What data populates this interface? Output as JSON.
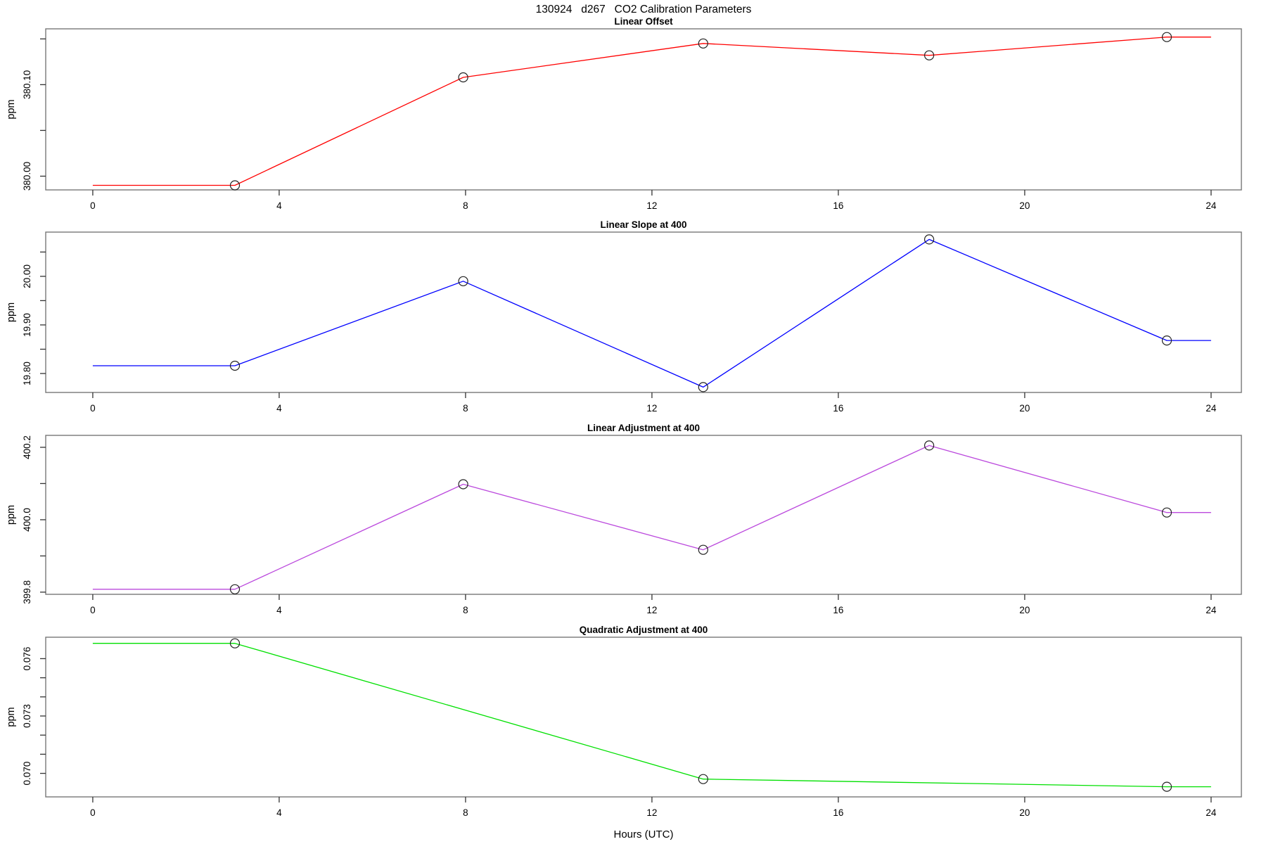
{
  "figure": {
    "title": "130924   d267   CO2 Calibration Parameters",
    "xlabel": "Hours (UTC)",
    "x_ticks": [
      0,
      4,
      8,
      12,
      16,
      20,
      24
    ],
    "axis_color": "#777777",
    "tick_color": "#333333",
    "marker_color": "#222222",
    "text_color": "#000000"
  },
  "chart_data": [
    {
      "type": "line",
      "title": "Linear Offset",
      "ylabel": "ppm",
      "color": "#ff0000",
      "x": [
        0,
        3.05,
        7.95,
        13.1,
        17.95,
        23.05,
        24
      ],
      "y": [
        379.99,
        379.99,
        380.108,
        380.145,
        380.132,
        380.152,
        380.152
      ],
      "marker_indices": [
        1,
        2,
        3,
        4,
        5
      ],
      "xlim": [
        -1.01,
        24.65
      ],
      "ylim": [
        379.985,
        380.161
      ],
      "yticks": [
        {
          "v": 380.0,
          "label": "380.00"
        },
        {
          "v": 380.05,
          "label": ""
        },
        {
          "v": 380.1,
          "label": "380.10"
        },
        {
          "v": 380.15,
          "label": ""
        }
      ]
    },
    {
      "type": "line",
      "title": "Linear Slope at 400",
      "ylabel": "ppm",
      "color": "#0000ff",
      "x": [
        0,
        3.05,
        7.95,
        13.1,
        17.95,
        23.05,
        24
      ],
      "y": [
        19.816,
        19.816,
        19.99,
        19.772,
        20.076,
        19.868,
        19.868
      ],
      "marker_indices": [
        1,
        2,
        3,
        4,
        5
      ],
      "xlim": [
        -1.01,
        24.65
      ],
      "ylim": [
        19.761,
        20.091
      ],
      "yticks": [
        {
          "v": 19.8,
          "label": "19.80"
        },
        {
          "v": 19.85,
          "label": ""
        },
        {
          "v": 19.9,
          "label": "19.90"
        },
        {
          "v": 19.95,
          "label": ""
        },
        {
          "v": 20.0,
          "label": "20.00"
        },
        {
          "v": 20.05,
          "label": ""
        }
      ]
    },
    {
      "type": "line",
      "title": "Linear Adjustment at 400",
      "ylabel": "ppm",
      "color": "#bb49dd",
      "x": [
        0,
        3.05,
        7.95,
        13.1,
        17.95,
        23.05,
        24
      ],
      "y": [
        399.808,
        399.808,
        400.098,
        399.917,
        400.205,
        400.02,
        400.02
      ],
      "marker_indices": [
        1,
        2,
        3,
        4,
        5
      ],
      "xlim": [
        -1.01,
        24.65
      ],
      "ylim": [
        399.794,
        400.233
      ],
      "yticks": [
        {
          "v": 399.8,
          "label": "399.8"
        },
        {
          "v": 399.9,
          "label": ""
        },
        {
          "v": 400.0,
          "label": "400.0"
        },
        {
          "v": 400.1,
          "label": ""
        },
        {
          "v": 400.2,
          "label": "400.2"
        }
      ]
    },
    {
      "type": "line",
      "title": "Quadratic Adjustment at 400",
      "ylabel": "ppm",
      "color": "#00e000",
      "x": [
        0,
        3.05,
        13.1,
        23.05,
        24
      ],
      "y": [
        0.0768,
        0.0768,
        0.0697,
        0.0693,
        0.0693
      ],
      "marker_indices": [
        1,
        2,
        3
      ],
      "xlim": [
        -1.01,
        24.65
      ],
      "ylim": [
        0.06877,
        0.07712
      ],
      "yticks": [
        {
          "v": 0.07,
          "label": "0.070"
        },
        {
          "v": 0.071,
          "label": ""
        },
        {
          "v": 0.072,
          "label": ""
        },
        {
          "v": 0.073,
          "label": "0.073"
        },
        {
          "v": 0.074,
          "label": ""
        },
        {
          "v": 0.075,
          "label": ""
        },
        {
          "v": 0.076,
          "label": "0.076"
        }
      ]
    }
  ]
}
